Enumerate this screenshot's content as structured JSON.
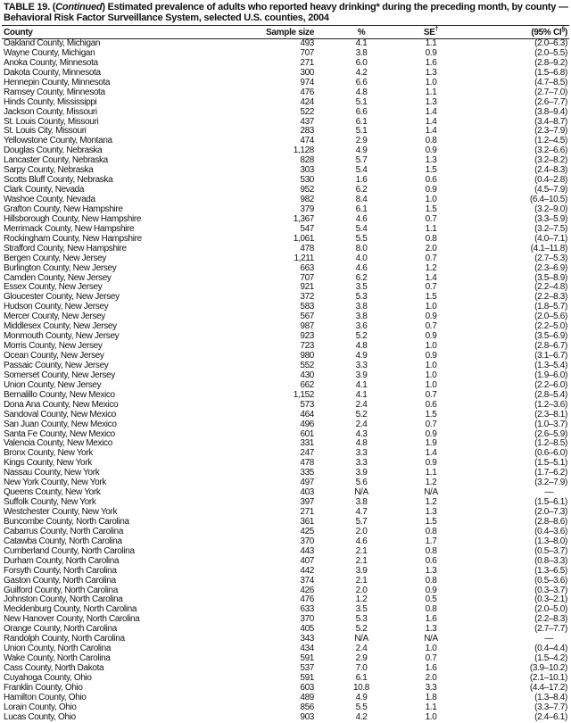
{
  "title": {
    "line1_prefix": "TABLE 19. (",
    "line1_italic": "Continued",
    "line1_rest": ") Estimated prevalence of adults who reported heavy drinking* during the preceding month, by county —",
    "line2": "Behavioral Risk Factor Surveillance System, selected U.S. counties, 2004"
  },
  "headers": {
    "county": "County",
    "sample_size": "Sample size",
    "percent": "%",
    "se": "SE",
    "se_mark": "†",
    "ci": "(95% CI",
    "ci_mark": "§",
    "ci_close": ")"
  },
  "rows": [
    [
      "Oakland County, Michigan",
      "493",
      "4.1",
      "1.1",
      "(2.0–6.3)"
    ],
    [
      "Wayne County, Michigan",
      "707",
      "3.8",
      "0.9",
      "(2.0–5.5)"
    ],
    [
      "Anoka County, Minnesota",
      "271",
      "6.0",
      "1.6",
      "(2.8–9.2)"
    ],
    [
      "Dakota County, Minnesota",
      "300",
      "4.2",
      "1.3",
      "(1.5–6.8)"
    ],
    [
      "Hennepin County, Minnesota",
      "974",
      "6.6",
      "1.0",
      "(4.7–8.5)"
    ],
    [
      "Ramsey County, Minnesota",
      "476",
      "4.8",
      "1.1",
      "(2.7–7.0)"
    ],
    [
      "Hinds County, Mississippi",
      "424",
      "5.1",
      "1.3",
      "(2.6–7.7)"
    ],
    [
      "Jackson County, Missouri",
      "522",
      "6.6",
      "1.4",
      "(3.8–9.4)"
    ],
    [
      "St. Louis County, Missouri",
      "437",
      "6.1",
      "1.4",
      "(3.4–8.7)"
    ],
    [
      "St. Louis City, Missouri",
      "283",
      "5.1",
      "1.4",
      "(2.3–7.9)"
    ],
    [
      "Yellowstone County, Montana",
      "474",
      "2.9",
      "0.8",
      "(1.2–4.5)"
    ],
    [
      "Douglas County, Nebraska",
      "1,128",
      "4.9",
      "0.9",
      "(3.2–6.6)"
    ],
    [
      "Lancaster County, Nebraska",
      "828",
      "5.7",
      "1.3",
      "(3.2–8.2)"
    ],
    [
      "Sarpy County, Nebraska",
      "303",
      "5.4",
      "1.5",
      "(2.4–8.3)"
    ],
    [
      "Scotts Bluff County, Nebraska",
      "530",
      "1.6",
      "0.6",
      "(0.4–2.8)"
    ],
    [
      "Clark County, Nevada",
      "952",
      "6.2",
      "0.9",
      "(4.5–7.9)"
    ],
    [
      "Washoe County, Nevada",
      "982",
      "8.4",
      "1.0",
      "(6.4–10.5)"
    ],
    [
      "Grafton County, New Hampshire",
      "379",
      "6.1",
      "1.5",
      "(3.2–9.0)"
    ],
    [
      "Hillsborough County, New Hampshire",
      "1,367",
      "4.6",
      "0.7",
      "(3.3–5.9)"
    ],
    [
      "Merrimack County, New Hampshire",
      "547",
      "5.4",
      "1.1",
      "(3.2–7.5)"
    ],
    [
      "Rockingham County, New Hampshire",
      "1,061",
      "5.5",
      "0.8",
      "(4.0–7.1)"
    ],
    [
      "Strafford County, New Hampshire",
      "478",
      "8.0",
      "2.0",
      "(4.1–11.8)"
    ],
    [
      "Bergen County, New Jersey",
      "1,211",
      "4.0",
      "0.7",
      "(2.7–5.3)"
    ],
    [
      "Burlington County, New Jersey",
      "663",
      "4.6",
      "1.2",
      "(2.3–6.9)"
    ],
    [
      "Camden County, New Jersey",
      "707",
      "6.2",
      "1.4",
      "(3.5–8.9)"
    ],
    [
      "Essex County, New Jersey",
      "921",
      "3.5",
      "0.7",
      "(2.2–4.8)"
    ],
    [
      "Gloucester County, New Jersey",
      "372",
      "5.3",
      "1.5",
      "(2.2–8.3)"
    ],
    [
      "Hudson County, New Jersey",
      "583",
      "3.8",
      "1.0",
      "(1.8–5.7)"
    ],
    [
      "Mercer County, New Jersey",
      "567",
      "3.8",
      "0.9",
      "(2.0–5.6)"
    ],
    [
      "Middlesex County, New Jersey",
      "987",
      "3.6",
      "0.7",
      "(2.2–5.0)"
    ],
    [
      "Monmouth County, New Jersey",
      "923",
      "5.2",
      "0.9",
      "(3.5–6.9)"
    ],
    [
      "Morris County, New Jersey",
      "723",
      "4.8",
      "1.0",
      "(2.8–6.7)"
    ],
    [
      "Ocean County, New Jersey",
      "980",
      "4.9",
      "0.9",
      "(3.1–6.7)"
    ],
    [
      "Passaic County, New Jersey",
      "552",
      "3.3",
      "1.0",
      "(1.3–5.4)"
    ],
    [
      "Somerset County, New Jersey",
      "430",
      "3.9",
      "1.0",
      "(1.9–6.0)"
    ],
    [
      "Union County, New Jersey",
      "662",
      "4.1",
      "1.0",
      "(2.2–6.0)"
    ],
    [
      "Bernalillo County, New Mexico",
      "1,152",
      "4.1",
      "0.7",
      "(2.8–5.4)"
    ],
    [
      "Dona Ana County, New Mexico",
      "573",
      "2.4",
      "0.6",
      "(1.2–3.6)"
    ],
    [
      "Sandoval County, New Mexico",
      "464",
      "5.2",
      "1.5",
      "(2.3–8.1)"
    ],
    [
      "San Juan County, New Mexico",
      "496",
      "2.4",
      "0.7",
      "(1.0–3.7)"
    ],
    [
      "Santa Fe County, New Mexico",
      "601",
      "4.3",
      "0.9",
      "(2.6–5.9)"
    ],
    [
      "Valencia County, New Mexico",
      "331",
      "4.8",
      "1.9",
      "(1.2–8.5)"
    ],
    [
      "Bronx County, New York",
      "247",
      "3.3",
      "1.4",
      "(0.6–6.0)"
    ],
    [
      "Kings County, New York",
      "478",
      "3.3",
      "0.9",
      "(1.5–5.1)"
    ],
    [
      "Nassau County, New York",
      "335",
      "3.9",
      "1.1",
      "(1.7–6.2)"
    ],
    [
      "New York County, New York",
      "497",
      "5.6",
      "1.2",
      "(3.2–7.9)"
    ],
    [
      "Queens County, New York",
      "403",
      "N/A",
      "N/A",
      "—"
    ],
    [
      "Suffolk County, New York",
      "397",
      "3.8",
      "1.2",
      "(1.5–6.1)"
    ],
    [
      "Westchester County, New York",
      "271",
      "4.7",
      "1.3",
      "(2.0–7.3)"
    ],
    [
      "Buncombe County, North Carolina",
      "361",
      "5.7",
      "1.5",
      "(2.8–8.6)"
    ],
    [
      "Cabarrus County, North Carolina",
      "425",
      "2.0",
      "0.8",
      "(0.4–3.6)"
    ],
    [
      "Catawba County, North Carolina",
      "370",
      "4.6",
      "1.7",
      "(1.3–8.0)"
    ],
    [
      "Cumberland County, North Carolina",
      "443",
      "2.1",
      "0.8",
      "(0.5–3.7)"
    ],
    [
      "Durham County, North Carolina",
      "407",
      "2.1",
      "0.6",
      "(0.8–3.3)"
    ],
    [
      "Forsyth County, North Carolina",
      "442",
      "3.9",
      "1.3",
      "(1.3–6.5)"
    ],
    [
      "Gaston County, North Carolina",
      "374",
      "2.1",
      "0.8",
      "(0.5–3.6)"
    ],
    [
      "Guilford County, North Carolina",
      "426",
      "2.0",
      "0.9",
      "(0.3–3.7)"
    ],
    [
      "Johnston County, North Carolina",
      "476",
      "1.2",
      "0.5",
      "(0.3–2.1)"
    ],
    [
      "Mecklenburg County, North Carolina",
      "633",
      "3.5",
      "0.8",
      "(2.0–5.0)"
    ],
    [
      "New Hanover County, North Carolina",
      "370",
      "5.3",
      "1.6",
      "(2.2–8.3)"
    ],
    [
      "Orange County, North Carolina",
      "405",
      "5.2",
      "1.3",
      "(2.7–7.7)"
    ],
    [
      "Randolph County, North Carolina",
      "343",
      "N/A",
      "N/A",
      "—"
    ],
    [
      "Union County, North Carolina",
      "434",
      "2.4",
      "1.0",
      "(0.4–4.4)"
    ],
    [
      "Wake County, North Carolina",
      "591",
      "2.9",
      "0.7",
      "(1.5–4.2)"
    ],
    [
      "Cass County, North Dakota",
      "537",
      "7.0",
      "1.6",
      "(3.9–10.2)"
    ],
    [
      "Cuyahoga County, Ohio",
      "591",
      "6.1",
      "2.0",
      "(2.1–10.1)"
    ],
    [
      "Franklin County, Ohio",
      "603",
      "10.8",
      "3.3",
      "(4.4–17.2)"
    ],
    [
      "Hamilton County, Ohio",
      "489",
      "4.9",
      "1.8",
      "(1.3–8.4)"
    ],
    [
      "Lorain County, Ohio",
      "856",
      "5.5",
      "1.1",
      "(3.3–7.7)"
    ],
    [
      "Lucas County, Ohio",
      "903",
      "4.2",
      "1.0",
      "(2.4–6.1)"
    ]
  ]
}
